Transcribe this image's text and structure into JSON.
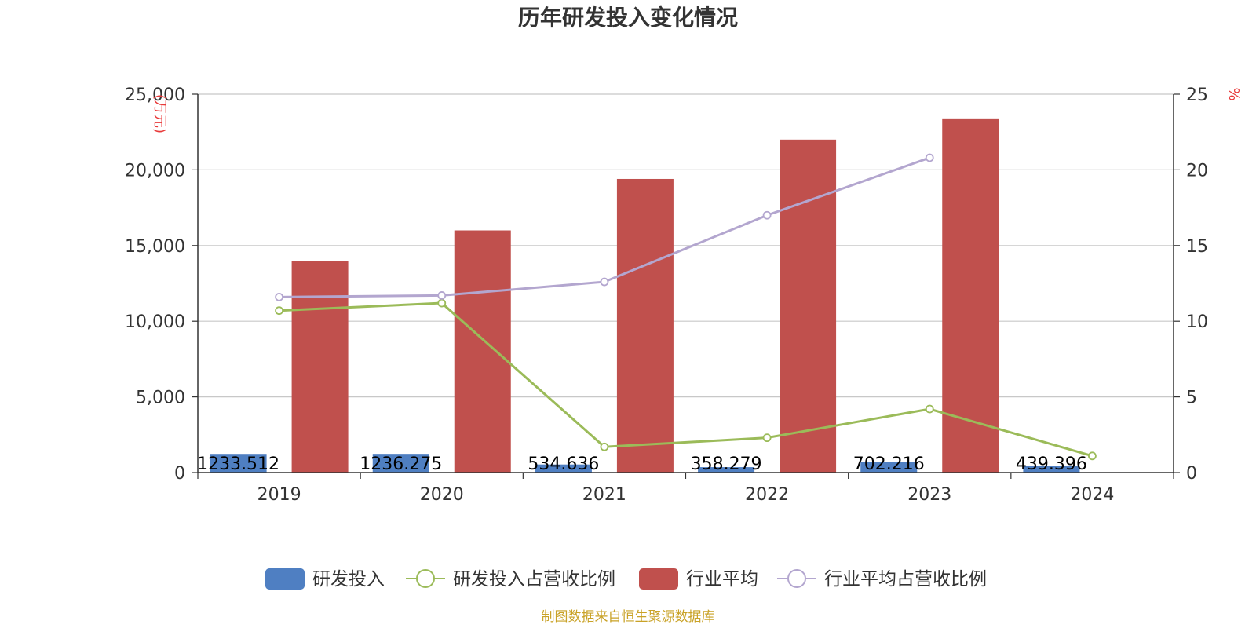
{
  "chart_data": {
    "type": "bar",
    "title": "历年研发投入变化情况",
    "categories": [
      "2019",
      "2020",
      "2021",
      "2022",
      "2023",
      "2024"
    ],
    "left_axis": {
      "unit": "(万元)",
      "min": 0,
      "max": 25000,
      "ticks": [
        "0",
        "5,000",
        "10,000",
        "15,000",
        "20,000",
        "25,000"
      ]
    },
    "right_axis": {
      "unit": "%",
      "min": 0,
      "max": 25,
      "ticks": [
        "0",
        "5",
        "10",
        "15",
        "20",
        "25"
      ]
    },
    "series": [
      {
        "name": "研发投入",
        "type": "bar",
        "axis": "left",
        "color": "#4f7fc2",
        "values": [
          1233.512,
          1236.275,
          534.636,
          358.279,
          702.216,
          439.396
        ],
        "labels": [
          "1233.512",
          "1236.275",
          "534.636",
          "358.279",
          "702.216",
          "439.396"
        ]
      },
      {
        "name": "研发投入占营收比例",
        "type": "line",
        "axis": "right",
        "color": "#9bbb59",
        "values": [
          10.7,
          11.2,
          1.7,
          2.3,
          4.2,
          1.1
        ]
      },
      {
        "name": "行业平均",
        "type": "bar",
        "axis": "left",
        "color": "#c0504d",
        "values": [
          14000,
          16000,
          19400,
          22000,
          23400,
          null
        ]
      },
      {
        "name": "行业平均占营收比例",
        "type": "line",
        "axis": "right",
        "color": "#b3a6cf",
        "values": [
          11.6,
          11.7,
          12.6,
          17.0,
          20.8,
          null
        ]
      }
    ],
    "grid": true,
    "legend_position": "bottom"
  },
  "source": {
    "text": "制图数据来自恒生聚源数据库",
    "color": "#c9a227"
  }
}
